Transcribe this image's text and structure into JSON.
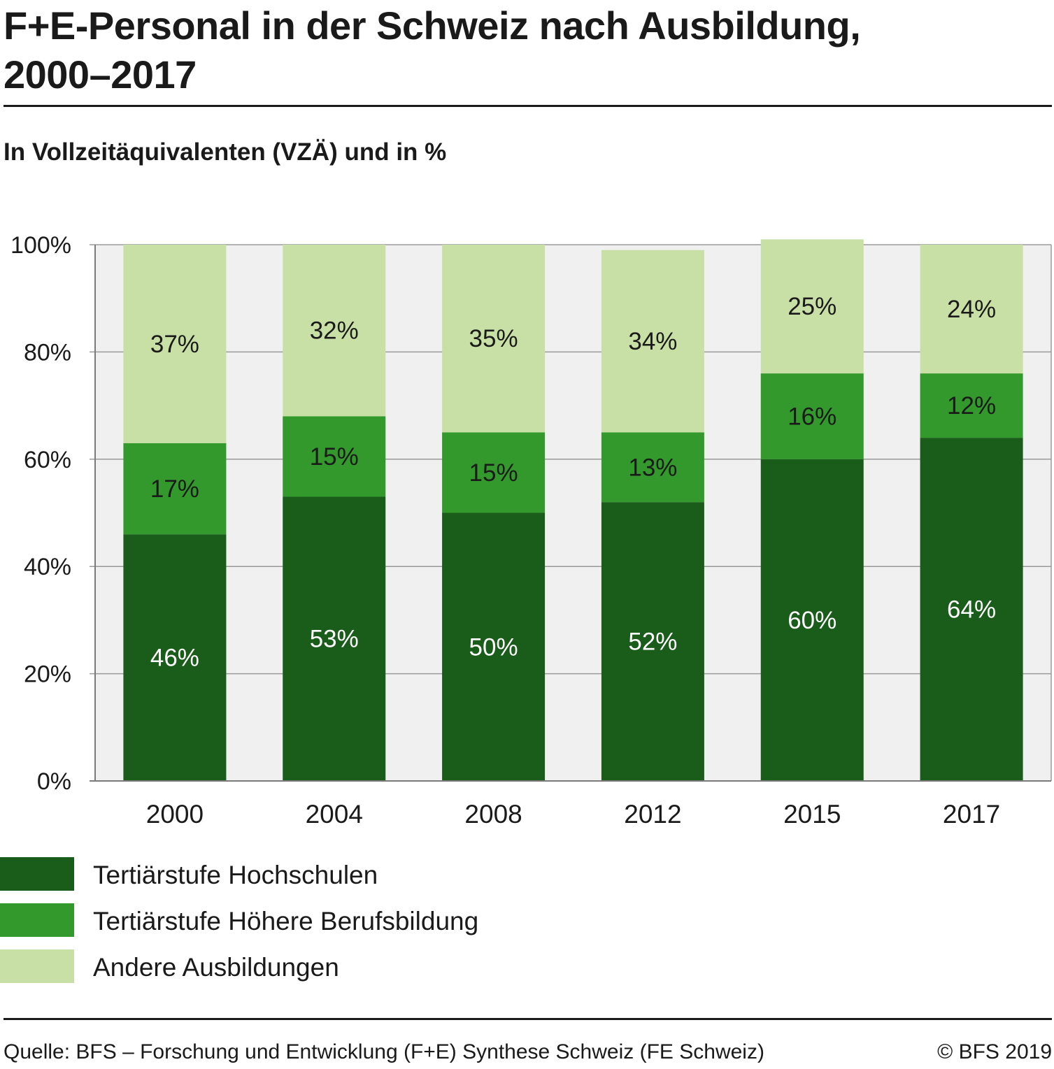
{
  "header": {
    "title_line1": "F+E-Personal in der Schweiz nach Ausbildung,",
    "title_line2": "2000–2017",
    "subtitle": "In Vollzeitäquivalenten (VZÄ) und in %"
  },
  "chart_data": {
    "type": "bar",
    "stacked": true,
    "title": "F+E-Personal in der Schweiz nach Ausbildung, 2000–2017",
    "subtitle": "In Vollzeitäquivalenten (VZÄ) und in %",
    "xlabel": "",
    "ylabel": "",
    "ylim": [
      0,
      100
    ],
    "yticks": [
      0,
      20,
      40,
      60,
      80,
      100
    ],
    "ytick_labels": [
      "0%",
      "20%",
      "40%",
      "60%",
      "80%",
      "100%"
    ],
    "categories": [
      "2000",
      "2004",
      "2008",
      "2012",
      "2015",
      "2017"
    ],
    "series": [
      {
        "name": "Tertiärstufe Hochschulen",
        "color": "#1a5c1a",
        "label_color": "#ffffff",
        "values": [
          46,
          53,
          50,
          52,
          60,
          64
        ],
        "labels": [
          "46%",
          "53%",
          "50%",
          "52%",
          "60%",
          "64%"
        ]
      },
      {
        "name": "Tertiärstufe Höhere Berufsbildung",
        "color": "#33992d",
        "label_color": "#1a1a1a",
        "values": [
          17,
          15,
          15,
          13,
          16,
          12
        ],
        "labels": [
          "17%",
          "15%",
          "15%",
          "13%",
          "16%",
          "12%"
        ]
      },
      {
        "name": "Andere Ausbildungen",
        "color": "#c8e0a6",
        "label_color": "#1a1a1a",
        "values": [
          37,
          32,
          35,
          34,
          25,
          24
        ],
        "labels": [
          "37%",
          "32%",
          "35%",
          "34%",
          "25%",
          "24%"
        ]
      }
    ],
    "grid": true,
    "legend_position": "bottom-left",
    "plot_background": "#f0f0f0"
  },
  "legend": {
    "items": [
      {
        "label": "Tertiärstufe Hochschulen",
        "color": "#1a5c1a"
      },
      {
        "label": "Tertiärstufe Höhere Berufsbildung",
        "color": "#33992d"
      },
      {
        "label": "Andere Ausbildungen",
        "color": "#c8e0a6"
      }
    ]
  },
  "footer": {
    "source": "Quelle: BFS – Forschung und Entwicklung (F+E) Synthese Schweiz (FE Schweiz)",
    "copyright": "© BFS 2019"
  }
}
